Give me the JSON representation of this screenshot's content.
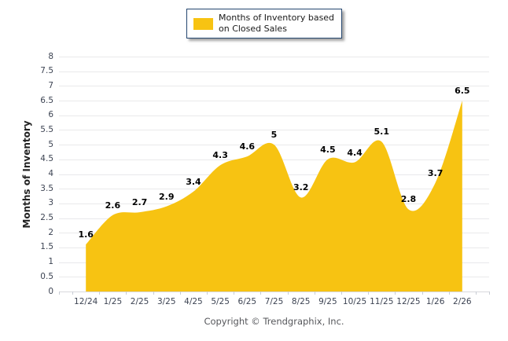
{
  "legend": {
    "label": "Months of Inventory based\non Closed Sales"
  },
  "y_axis": {
    "title": "Months of Inventory"
  },
  "footer": {
    "copyright": "Copyright © Trendgraphix, Inc."
  },
  "chart_data": {
    "type": "area",
    "title": "",
    "series_name": "Months of Inventory based on Closed Sales",
    "categories": [
      "12/24",
      "1/25",
      "2/25",
      "3/25",
      "4/25",
      "5/25",
      "6/25",
      "7/25",
      "8/25",
      "9/25",
      "10/25",
      "11/25",
      "12/25",
      "1/26",
      "2/26"
    ],
    "values": [
      1.6,
      2.6,
      2.7,
      2.9,
      3.4,
      4.3,
      4.6,
      5,
      3.2,
      4.5,
      4.4,
      5.1,
      2.8,
      3.7,
      6.5
    ],
    "xlabel": "",
    "ylabel": "Months of Inventory",
    "ylim": [
      0,
      8
    ],
    "ytick_step": 0.5,
    "grid": "horizontal",
    "legend_position": "top-center",
    "smoothing": "spline",
    "colors": {
      "area": "#F7C312",
      "data_label": "#000000",
      "gridline": "#e9e9eb",
      "baseline": "#d8d8dc",
      "tick": "#c8ccd4",
      "axis_text": "#3d4453",
      "legend_border": "#24466F",
      "copyright_text": "#56575B"
    }
  }
}
